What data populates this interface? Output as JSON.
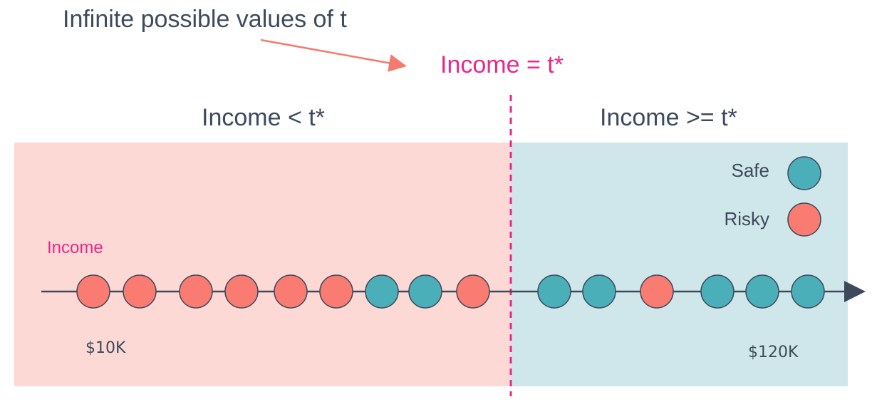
{
  "title": "Infinite possible values of t",
  "threshold_label": "Income = t*",
  "regions": {
    "left_label": "Income < t*",
    "right_label": "Income >= t*"
  },
  "axis": {
    "name": "Income",
    "min_label": "$10K",
    "max_label": "$120K"
  },
  "legend": {
    "safe": "Safe",
    "risky": "Risky"
  },
  "colors": {
    "safe": "#4aafb9",
    "risky": "#f97b72",
    "threshold": "#e8288c",
    "left_region": "#fdd9d6",
    "right_region": "#cfe7ea",
    "text": "#3e4a5b",
    "arrow": "#f47a6e"
  },
  "points": [
    {
      "class": "risky"
    },
    {
      "class": "risky"
    },
    {
      "class": "risky"
    },
    {
      "class": "risky"
    },
    {
      "class": "risky"
    },
    {
      "class": "risky"
    },
    {
      "class": "safe"
    },
    {
      "class": "safe"
    },
    {
      "class": "risky"
    },
    {
      "class": "safe"
    },
    {
      "class": "safe"
    },
    {
      "class": "risky"
    },
    {
      "class": "safe"
    },
    {
      "class": "safe"
    },
    {
      "class": "safe"
    }
  ]
}
